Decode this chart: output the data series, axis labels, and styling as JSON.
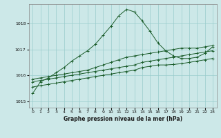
{
  "title": "Graphe pression niveau de la mer (hPa)",
  "bg_color": "#cce8e8",
  "grid_color": "#99cccc",
  "line_color": "#1a5c2a",
  "xlim": [
    -0.5,
    23.5
  ],
  "ylim": [
    1014.75,
    1018.75
  ],
  "yticks": [
    1015,
    1016,
    1017,
    1018
  ],
  "xticks": [
    0,
    1,
    2,
    3,
    4,
    5,
    6,
    7,
    8,
    9,
    10,
    11,
    12,
    13,
    14,
    15,
    16,
    17,
    18,
    19,
    20,
    21,
    22,
    23
  ],
  "series": [
    {
      "x": [
        0,
        1,
        2,
        3,
        4,
        5,
        6,
        7,
        8,
        9,
        10,
        11,
        12,
        13,
        14,
        15,
        16,
        17,
        18,
        19,
        20,
        21,
        22,
        23
      ],
      "y": [
        1015.3,
        1015.75,
        1015.9,
        1016.1,
        1016.3,
        1016.55,
        1016.75,
        1016.95,
        1017.2,
        1017.55,
        1017.9,
        1018.3,
        1018.55,
        1018.45,
        1018.1,
        1017.7,
        1017.25,
        1016.95,
        1016.75,
        1016.65,
        1016.65,
        1016.7,
        1016.85,
        1017.1
      ]
    },
    {
      "x": [
        0,
        1,
        2,
        3,
        4,
        5,
        6,
        7,
        8,
        9,
        10,
        11,
        12,
        13,
        14,
        15,
        16,
        17,
        18,
        19,
        20,
        21,
        22,
        23
      ],
      "y": [
        1015.85,
        1015.9,
        1015.95,
        1016.0,
        1016.05,
        1016.1,
        1016.15,
        1016.2,
        1016.3,
        1016.4,
        1016.5,
        1016.6,
        1016.7,
        1016.75,
        1016.8,
        1016.85,
        1016.9,
        1016.95,
        1017.0,
        1017.05,
        1017.05,
        1017.05,
        1017.1,
        1017.15
      ]
    },
    {
      "x": [
        0,
        1,
        2,
        3,
        4,
        5,
        6,
        7,
        8,
        9,
        10,
        11,
        12,
        13,
        14,
        15,
        16,
        17,
        18,
        19,
        20,
        21,
        22,
        23
      ],
      "y": [
        1015.75,
        1015.8,
        1015.85,
        1015.9,
        1015.95,
        1016.0,
        1016.05,
        1016.1,
        1016.15,
        1016.2,
        1016.25,
        1016.3,
        1016.35,
        1016.4,
        1016.5,
        1016.55,
        1016.6,
        1016.65,
        1016.7,
        1016.75,
        1016.8,
        1016.85,
        1016.9,
        1016.95
      ]
    },
    {
      "x": [
        0,
        1,
        2,
        3,
        4,
        5,
        6,
        7,
        8,
        9,
        10,
        11,
        12,
        13,
        14,
        15,
        16,
        17,
        18,
        19,
        20,
        21,
        22,
        23
      ],
      "y": [
        1015.55,
        1015.6,
        1015.65,
        1015.7,
        1015.75,
        1015.8,
        1015.85,
        1015.9,
        1015.95,
        1016.0,
        1016.05,
        1016.1,
        1016.15,
        1016.2,
        1016.3,
        1016.35,
        1016.4,
        1016.4,
        1016.42,
        1016.45,
        1016.5,
        1016.55,
        1016.6,
        1016.65
      ]
    }
  ]
}
